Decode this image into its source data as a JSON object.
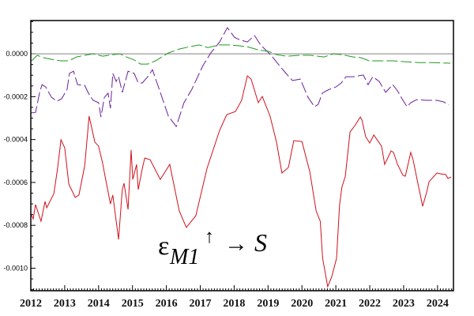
{
  "chart_data": {
    "type": "line",
    "title": "",
    "xlabel": "",
    "ylabel": "",
    "xlim": [
      2012,
      2024.47
    ],
    "ylim": [
      -0.001105,
      0.000155
    ],
    "grid": false,
    "reference_line": {
      "y": 0,
      "color": "#808080"
    },
    "xticks": [
      "2012",
      "2013",
      "2014",
      "2015",
      "2016",
      "2017",
      "2018",
      "2019",
      "2020",
      "2021",
      "2022",
      "2023",
      "2024"
    ],
    "yticks": [
      {
        "value": 0,
        "label": "0.0000"
      },
      {
        "value": -0.0002,
        "label": "-0.0002"
      },
      {
        "value": -0.0004,
        "label": "-0.0004"
      },
      {
        "value": -0.0006,
        "label": "-0.0006"
      },
      {
        "value": -0.0008,
        "label": "-0.0008"
      },
      {
        "value": -0.001,
        "label": "-0.0010"
      }
    ],
    "annotation": {
      "symbol": "ε",
      "subscript": "M1",
      "arrow_up": "↑",
      "arrow_right": "→",
      "target": "S"
    },
    "series": [
      {
        "color": "#d0101c",
        "style": "solid",
        "points": [
          [
            2012.0,
            -0.000744
          ],
          [
            2012.07,
            -0.00077
          ],
          [
            2012.14,
            -0.000703
          ],
          [
            2012.3,
            -0.000781
          ],
          [
            2012.42,
            -0.000689
          ],
          [
            2012.47,
            -0.000718
          ],
          [
            2012.68,
            -0.000652
          ],
          [
            2012.79,
            -0.000534
          ],
          [
            2012.89,
            -0.000401
          ],
          [
            2013.0,
            -0.000438
          ],
          [
            2013.12,
            -0.000608
          ],
          [
            2013.31,
            -0.00067
          ],
          [
            2013.42,
            -0.000659
          ],
          [
            2013.59,
            -0.000523
          ],
          [
            2013.72,
            -0.000291
          ],
          [
            2013.89,
            -0.000412
          ],
          [
            2014.0,
            -0.000431
          ],
          [
            2014.12,
            -0.000512
          ],
          [
            2014.19,
            -0.000571
          ],
          [
            2014.35,
            -0.0007
          ],
          [
            2014.42,
            -0.000659
          ],
          [
            2014.59,
            -0.000866
          ],
          [
            2014.7,
            -0.000633
          ],
          [
            2014.75,
            -0.000604
          ],
          [
            2014.87,
            -0.000726
          ],
          [
            2014.96,
            -0.000449
          ],
          [
            2015.01,
            -0.000586
          ],
          [
            2015.12,
            -0.000516
          ],
          [
            2015.17,
            -0.000633
          ],
          [
            2015.29,
            -0.000534
          ],
          [
            2015.36,
            -0.000486
          ],
          [
            2015.52,
            -0.000494
          ],
          [
            2015.82,
            -0.000586
          ],
          [
            2016.1,
            -0.000516
          ],
          [
            2016.38,
            -0.000733
          ],
          [
            2016.59,
            -0.00081
          ],
          [
            2016.87,
            -0.000755
          ],
          [
            2017.2,
            -0.000534
          ],
          [
            2017.57,
            -0.000357
          ],
          [
            2017.78,
            -0.000284
          ],
          [
            2018.04,
            -0.000269
          ],
          [
            2018.22,
            -0.000217
          ],
          [
            2018.39,
            -0.000103
          ],
          [
            2018.5,
            -0.000118
          ],
          [
            2018.71,
            -0.000228
          ],
          [
            2018.83,
            -0.000199
          ],
          [
            2019.06,
            -0.000291
          ],
          [
            2019.25,
            -0.000412
          ],
          [
            2019.41,
            -0.000556
          ],
          [
            2019.6,
            -0.00053
          ],
          [
            2019.76,
            -0.000405
          ],
          [
            2020.0,
            -0.000409
          ],
          [
            2020.23,
            -0.000549
          ],
          [
            2020.42,
            -0.000733
          ],
          [
            2020.54,
            -0.000781
          ],
          [
            2020.61,
            -0.000954
          ],
          [
            2020.76,
            -0.001086
          ],
          [
            2020.88,
            -0.001039
          ],
          [
            2021.02,
            -0.000954
          ],
          [
            2021.11,
            -0.000707
          ],
          [
            2021.18,
            -0.000622
          ],
          [
            2021.28,
            -0.000571
          ],
          [
            2021.42,
            -0.000365
          ],
          [
            2021.58,
            -0.000331
          ],
          [
            2021.72,
            -0.000295
          ],
          [
            2021.77,
            -0.000309
          ],
          [
            2021.88,
            -0.000387
          ],
          [
            2022.0,
            -0.000416
          ],
          [
            2022.12,
            -0.000379
          ],
          [
            2022.35,
            -0.000431
          ],
          [
            2022.44,
            -0.000516
          ],
          [
            2022.63,
            -0.000453
          ],
          [
            2022.7,
            -0.00046
          ],
          [
            2022.82,
            -0.000516
          ],
          [
            2022.98,
            -0.000567
          ],
          [
            2023.05,
            -0.000571
          ],
          [
            2023.21,
            -0.00046
          ],
          [
            2023.28,
            -0.000494
          ],
          [
            2023.4,
            -0.000589
          ],
          [
            2023.56,
            -0.000711
          ],
          [
            2023.68,
            -0.000645
          ],
          [
            2023.75,
            -0.000597
          ],
          [
            2023.98,
            -0.000556
          ],
          [
            2024.1,
            -0.00056
          ],
          [
            2024.24,
            -0.000563
          ],
          [
            2024.31,
            -0.000582
          ],
          [
            2024.4,
            -0.000575
          ]
        ]
      },
      {
        "color": "#6a1f9a",
        "style": "dashed",
        "points": [
          [
            2012.0,
            -0.000276
          ],
          [
            2012.14,
            -0.000273
          ],
          [
            2012.26,
            -0.00018
          ],
          [
            2012.33,
            -0.000144
          ],
          [
            2012.44,
            -0.000155
          ],
          [
            2012.61,
            -0.000203
          ],
          [
            2012.77,
            -0.000221
          ],
          [
            2012.91,
            -0.00021
          ],
          [
            2013.07,
            -0.000166
          ],
          [
            2013.14,
            -9.2e-05
          ],
          [
            2013.26,
            -8.1e-05
          ],
          [
            2013.38,
            -0.000144
          ],
          [
            2013.59,
            -0.000147
          ],
          [
            2013.7,
            -0.000184
          ],
          [
            2013.84,
            -0.000217
          ],
          [
            2014.0,
            -0.000228
          ],
          [
            2014.07,
            -0.000295
          ],
          [
            2014.17,
            -0.000203
          ],
          [
            2014.28,
            -0.000184
          ],
          [
            2014.35,
            -0.000254
          ],
          [
            2014.42,
            -9.2e-05
          ],
          [
            2014.52,
            -0.000129
          ],
          [
            2014.59,
            -0.000107
          ],
          [
            2014.7,
            -0.00018
          ],
          [
            2014.87,
            -8.1e-05
          ],
          [
            2015.05,
            -9.2e-05
          ],
          [
            2015.17,
            -0.000136
          ],
          [
            2015.29,
            -0.000136
          ],
          [
            2015.45,
            -0.000107
          ],
          [
            2015.59,
            -7.4e-05
          ],
          [
            2015.82,
            -0.00018
          ],
          [
            2016.06,
            -0.000291
          ],
          [
            2016.29,
            -0.000339
          ],
          [
            2016.52,
            -0.000228
          ],
          [
            2016.75,
            -0.000166
          ],
          [
            2017.08,
            -5.5e-05
          ],
          [
            2017.31,
            4e-06
          ],
          [
            2017.57,
            5.5e-05
          ],
          [
            2017.8,
            0.000122
          ],
          [
            2018.01,
            7.7e-05
          ],
          [
            2018.15,
            6.6e-05
          ],
          [
            2018.39,
            5.5e-05
          ],
          [
            2018.6,
            8.5e-05
          ],
          [
            2018.78,
            4.1e-05
          ],
          [
            2019.09,
            -7e-06
          ],
          [
            2019.32,
            -5.2e-05
          ],
          [
            2019.53,
            -9.2e-05
          ],
          [
            2019.72,
            -0.000125
          ],
          [
            2019.95,
            -0.000118
          ],
          [
            2020.18,
            -0.000203
          ],
          [
            2020.37,
            -0.000247
          ],
          [
            2020.48,
            -0.000236
          ],
          [
            2020.6,
            -0.000184
          ],
          [
            2020.72,
            -0.000173
          ],
          [
            2020.81,
            -0.000166
          ],
          [
            2021.0,
            -0.000155
          ],
          [
            2021.16,
            -0.000136
          ],
          [
            2021.3,
            -0.000107
          ],
          [
            2021.53,
            -0.000107
          ],
          [
            2021.81,
            -9.9e-05
          ],
          [
            2021.95,
            -0.000144
          ],
          [
            2022.09,
            -0.000107
          ],
          [
            2022.28,
            -0.000129
          ],
          [
            2022.47,
            -0.00018
          ],
          [
            2022.68,
            -0.000144
          ],
          [
            2022.82,
            -0.000173
          ],
          [
            2022.98,
            -0.000217
          ],
          [
            2023.1,
            -0.000247
          ],
          [
            2023.21,
            -0.000228
          ],
          [
            2023.38,
            -0.000214
          ],
          [
            2023.68,
            -0.000217
          ],
          [
            2023.98,
            -0.000217
          ],
          [
            2024.19,
            -0.000225
          ],
          [
            2024.33,
            -0.000239
          ]
        ]
      },
      {
        "color": "#1f9a1f",
        "style": "dashed",
        "points": [
          [
            2012.02,
            -3.3e-05
          ],
          [
            2012.19,
            -7e-06
          ],
          [
            2012.37,
            -1.8e-05
          ],
          [
            2012.61,
            -2.6e-05
          ],
          [
            2012.89,
            -3.3e-05
          ],
          [
            2013.12,
            -3.3e-05
          ],
          [
            2013.35,
            -1.5e-05
          ],
          [
            2013.59,
            -7e-06
          ],
          [
            2013.84,
            0.0
          ],
          [
            2014.12,
            -1.1e-05
          ],
          [
            2014.42,
            -4e-06
          ],
          [
            2014.63,
            0.0
          ],
          [
            2014.82,
            -1.5e-05
          ],
          [
            2015.05,
            -2.9e-05
          ],
          [
            2015.24,
            -4.8e-05
          ],
          [
            2015.45,
            -4.8e-05
          ],
          [
            2015.68,
            -3.3e-05
          ],
          [
            2016.06,
            4e-06
          ],
          [
            2016.38,
            2.2e-05
          ],
          [
            2016.69,
            3.3e-05
          ],
          [
            2016.97,
            4.1e-05
          ],
          [
            2017.22,
            2.9e-05
          ],
          [
            2017.55,
            4.1e-05
          ],
          [
            2017.85,
            4.1e-05
          ],
          [
            2018.15,
            3.7e-05
          ],
          [
            2018.39,
            3.3e-05
          ],
          [
            2018.71,
            1.8e-05
          ],
          [
            2019.02,
            1.1e-05
          ],
          [
            2019.25,
            -4e-06
          ],
          [
            2019.55,
            -1.1e-05
          ],
          [
            2019.95,
            -7e-06
          ],
          [
            2020.25,
            -7e-06
          ],
          [
            2020.65,
            -1.5e-05
          ],
          [
            2020.93,
            0.0
          ],
          [
            2021.18,
            -4e-06
          ],
          [
            2021.51,
            -1.5e-05
          ],
          [
            2021.74,
            -1.8e-05
          ],
          [
            2021.98,
            -3.3e-05
          ],
          [
            2022.28,
            -3.3e-05
          ],
          [
            2022.68,
            -3.3e-05
          ],
          [
            2023.05,
            -3.7e-05
          ],
          [
            2023.45,
            -4.1e-05
          ],
          [
            2023.84,
            -4.1e-05
          ],
          [
            2024.38,
            -4.4e-05
          ]
        ]
      }
    ]
  }
}
